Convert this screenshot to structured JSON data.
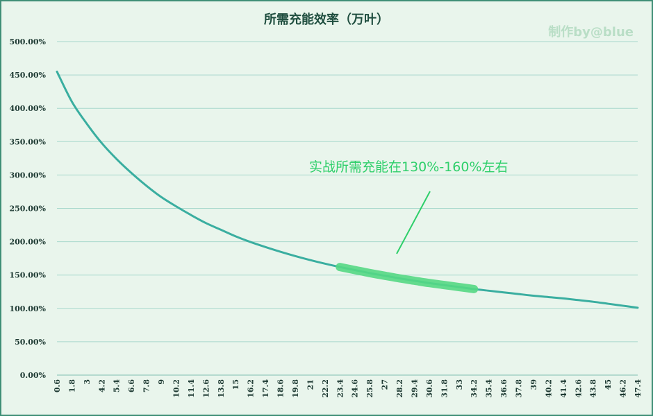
{
  "chart_data": {
    "type": "line",
    "title": "所需充能效率（万叶）",
    "watermark": "制作by@blue",
    "xlabel": "",
    "ylabel": "",
    "ylim": [
      0,
      500
    ],
    "y_ticks": [
      "0.00%",
      "50.00%",
      "100.00%",
      "150.00%",
      "200.00%",
      "250.00%",
      "300.00%",
      "350.00%",
      "400.00%",
      "450.00%",
      "500.00%"
    ],
    "x_ticks": [
      "0.6",
      "1.8",
      "3",
      "4.2",
      "5.4",
      "6.6",
      "7.8",
      "9",
      "10.2",
      "11.4",
      "12.6",
      "13.8",
      "15",
      "16.2",
      "17.4",
      "18.6",
      "19.8",
      "21",
      "22.2",
      "23.4",
      "24.6",
      "25.8",
      "27",
      "28.2",
      "29.4",
      "30.6",
      "31.8",
      "33",
      "34.2",
      "35.4",
      "36.6",
      "37.8",
      "39",
      "40.2",
      "41.4",
      "42.6",
      "43.8",
      "45",
      "46.2",
      "47.4"
    ],
    "grid": true,
    "series": [
      {
        "color": "#3aaea0",
        "x": [
          0.6,
          1.8,
          3,
          4.2,
          5.4,
          6.6,
          7.8,
          9,
          10.2,
          11.4,
          12.6,
          13.8,
          15,
          16.2,
          17.4,
          18.6,
          19.8,
          21,
          22.2,
          23.4,
          24.6,
          25.8,
          27,
          28.2,
          29.4,
          30.6,
          31.8,
          33,
          34.2,
          35.4,
          36.6,
          37.8,
          39,
          40.2,
          41.4,
          42.6,
          43.8,
          45,
          46.2,
          47.4
        ],
        "values": [
          455,
          410,
          377,
          348,
          324,
          303,
          284,
          267,
          253,
          240,
          228,
          218,
          208,
          199.5,
          192,
          185,
          178.5,
          172.5,
          167,
          162,
          157.5,
          153,
          149,
          145,
          141.5,
          138,
          135,
          132,
          129,
          126.5,
          124,
          121.5,
          119,
          117,
          115,
          112.5,
          110,
          107,
          104,
          101
        ]
      }
    ],
    "highlight": {
      "color": "#55d884",
      "x_from": 23.4,
      "x_to": 34.2,
      "text": "实战所需充能在130%-160%左右"
    }
  }
}
